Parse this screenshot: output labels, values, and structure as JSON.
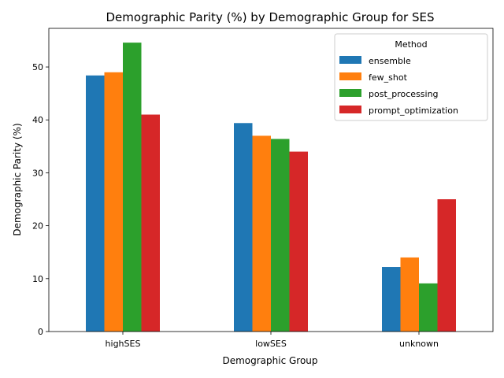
{
  "chart_data": {
    "type": "bar",
    "title": "Demographic Parity (%) by Demographic Group for SES",
    "xlabel": "Demographic Group",
    "ylabel": "Demographic Parity (%)",
    "ylim": [
      0,
      57.3
    ],
    "yticks": [
      0,
      10,
      20,
      30,
      40,
      50
    ],
    "categories": [
      "highSES",
      "lowSES",
      "unknown"
    ],
    "legend": {
      "title": "Method",
      "placement": "top-right"
    },
    "grid": false,
    "series": [
      {
        "name": "ensemble",
        "color": "#1f77b4",
        "values": [
          48.4,
          39.4,
          12.2
        ]
      },
      {
        "name": "few_shot",
        "color": "#ff7f0e",
        "values": [
          49.0,
          37.0,
          14.0
        ]
      },
      {
        "name": "post_processing",
        "color": "#2ca02c",
        "values": [
          54.6,
          36.4,
          9.1
        ]
      },
      {
        "name": "prompt_optimization",
        "color": "#d62728",
        "values": [
          41.0,
          34.0,
          25.0
        ]
      }
    ]
  }
}
